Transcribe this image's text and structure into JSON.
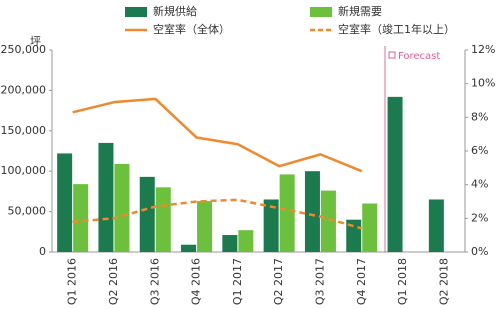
{
  "chart_data": {
    "type": "bar",
    "y_unit": "坪",
    "annotation": "Forecast",
    "categories": [
      "Q1 2016",
      "Q2 2016",
      "Q3 2016",
      "Q4 2016",
      "Q1 2017",
      "Q2 2017",
      "Q3 2017",
      "Q4 2017",
      "Q1 2018",
      "Q2 2018"
    ],
    "series": [
      {
        "name": "新規供給",
        "type": "bar",
        "color": "#1b7a4e",
        "values": [
          122000,
          135000,
          93000,
          9000,
          21000,
          65000,
          100000,
          40000,
          192000,
          65000
        ]
      },
      {
        "name": "新規需要",
        "type": "bar",
        "color": "#6cc03c",
        "values": [
          84000,
          109000,
          80000,
          63000,
          27000,
          96000,
          76000,
          60000,
          null,
          null
        ]
      },
      {
        "name": "空室率（全体）",
        "type": "line",
        "axis": "y2",
        "color": "#f0892d",
        "dashed": false,
        "values": [
          8.3,
          8.9,
          9.1,
          6.8,
          6.4,
          5.1,
          5.8,
          4.8,
          null,
          null
        ]
      },
      {
        "name": "空室率（竣工1年以上）",
        "type": "line",
        "axis": "y2",
        "color": "#f0892d",
        "dashed": true,
        "values": [
          1.8,
          2.0,
          2.7,
          3.0,
          3.1,
          2.6,
          2.1,
          1.4,
          null,
          null
        ]
      }
    ],
    "ylim": [
      0,
      250000
    ],
    "yticks": [
      0,
      {
        "value": 50000,
        "label": "50,000"
      },
      {
        "value": 100000,
        "label": "100,000"
      },
      {
        "value": 150000,
        "label": "150,000"
      },
      {
        "value": 200000,
        "label": "200,000"
      },
      {
        "value": 250000,
        "label": "250,000"
      }
    ],
    "y2lim": [
      0,
      12
    ],
    "y2ticks": [
      {
        "value": 0,
        "label": "0%"
      },
      {
        "value": 2,
        "label": "2%"
      },
      {
        "value": 4,
        "label": "4%"
      },
      {
        "value": 6,
        "label": "6%"
      },
      {
        "value": 8,
        "label": "8%"
      },
      {
        "value": 10,
        "label": "10%"
      },
      {
        "value": 12,
        "label": "12%"
      }
    ]
  }
}
